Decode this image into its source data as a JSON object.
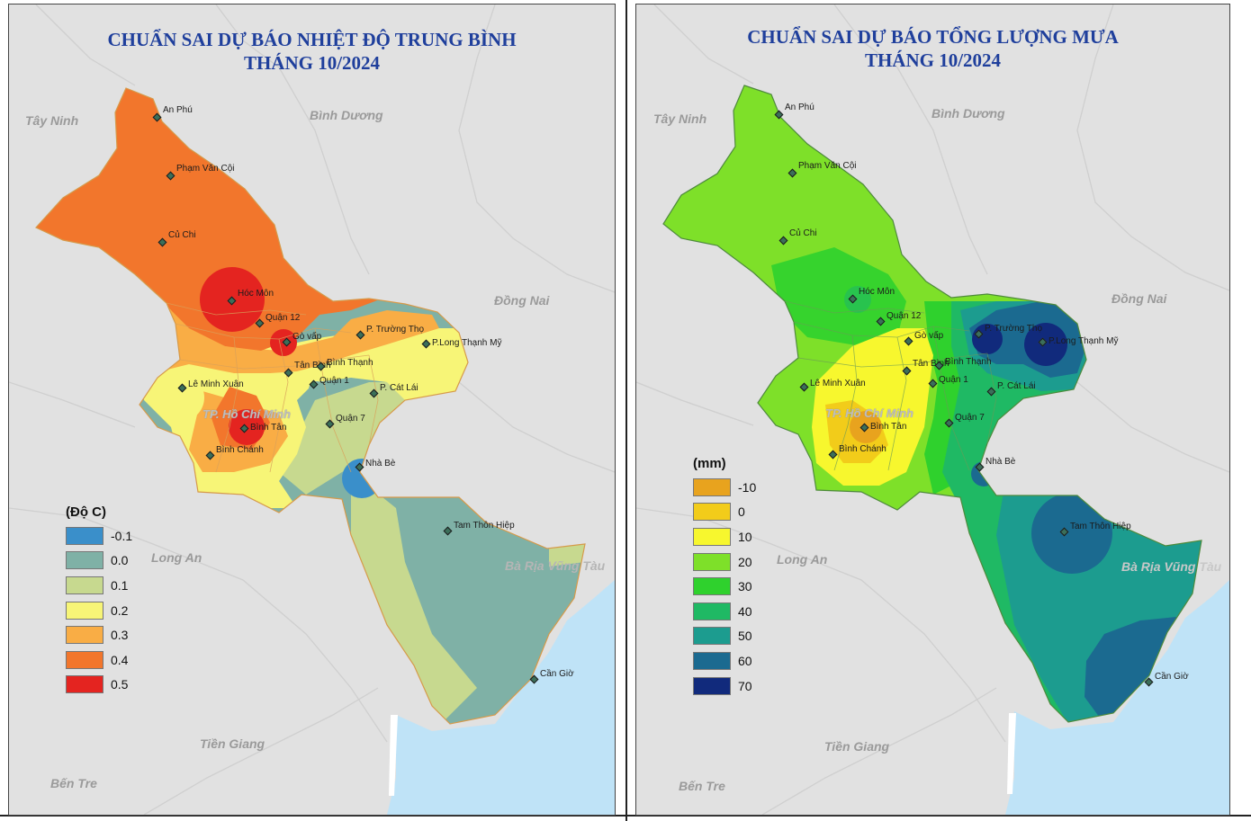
{
  "left_map": {
    "title_line1": "CHUẨN SAI DỰ BÁO NHIỆT ĐỘ TRUNG BÌNH",
    "title_line2": "THÁNG 10/2024",
    "legend_title": "(Độ C)",
    "legend": [
      {
        "label": "-0.1",
        "color": "#3a8fca"
      },
      {
        "label": "0.0",
        "color": "#7fb1a6"
      },
      {
        "label": "0.1",
        "color": "#c7d98f"
      },
      {
        "label": "0.2",
        "color": "#f7f577"
      },
      {
        "label": "0.3",
        "color": "#f9ad45"
      },
      {
        "label": "0.4",
        "color": "#f2762c"
      },
      {
        "label": "0.5",
        "color": "#e42420"
      }
    ]
  },
  "right_map": {
    "title_line1": "CHUẨN SAI DỰ BÁO TỔNG LƯỢNG MƯA",
    "title_line2": "THÁNG 10/2024",
    "legend_title": "(mm)",
    "legend": [
      {
        "label": "-10",
        "color": "#e8a31e"
      },
      {
        "label": "0",
        "color": "#f2cc1a"
      },
      {
        "label": "10",
        "color": "#f7f72e"
      },
      {
        "label": "20",
        "color": "#7ee029"
      },
      {
        "label": "30",
        "color": "#2fd12d"
      },
      {
        "label": "40",
        "color": "#1fb964"
      },
      {
        "label": "50",
        "color": "#1c9c8f"
      },
      {
        "label": "60",
        "color": "#1b6a90"
      },
      {
        "label": "70",
        "color": "#112a7c"
      }
    ]
  },
  "regions": {
    "tay_ninh": "Tây Ninh",
    "binh_duong": "Bình Dương",
    "dong_nai": "Đồng Nai",
    "long_an": "Long An",
    "ba_ria": "Bà Rịa Vũng Tàu",
    "tien_giang": "Tiền Giang",
    "ben_tre": "Bến Tre",
    "hcm": "TP. Hồ Chí Minh"
  },
  "places": {
    "an_phu": "An Phú",
    "pham_van_coi": "Phạm Văn Cội",
    "cu_chi": "Củ Chi",
    "hoc_mon": "Hóc Môn",
    "quan_12": "Quận 12",
    "go_vap": "Gò vấp",
    "p_truong_tho": "P. Trường Thọ",
    "p_long_thanh_my": "P.Long Thạnh Mỹ",
    "tan_binh": "Tân Bình",
    "binh_thanh": "Bình Thạnh",
    "quan_1": "Quận 1",
    "le_minh_xuan": "Lê Minh Xuân",
    "p_cat_lai": "P. Cát Lái",
    "binh_tan": "Bình Tân",
    "quan_7": "Quận 7",
    "binh_chanh": "Bình Chánh",
    "nha_be": "Nhà Bè",
    "tam_thon_hiep": "Tam Thôn Hiệp",
    "can_gio": "Cần Giờ"
  }
}
